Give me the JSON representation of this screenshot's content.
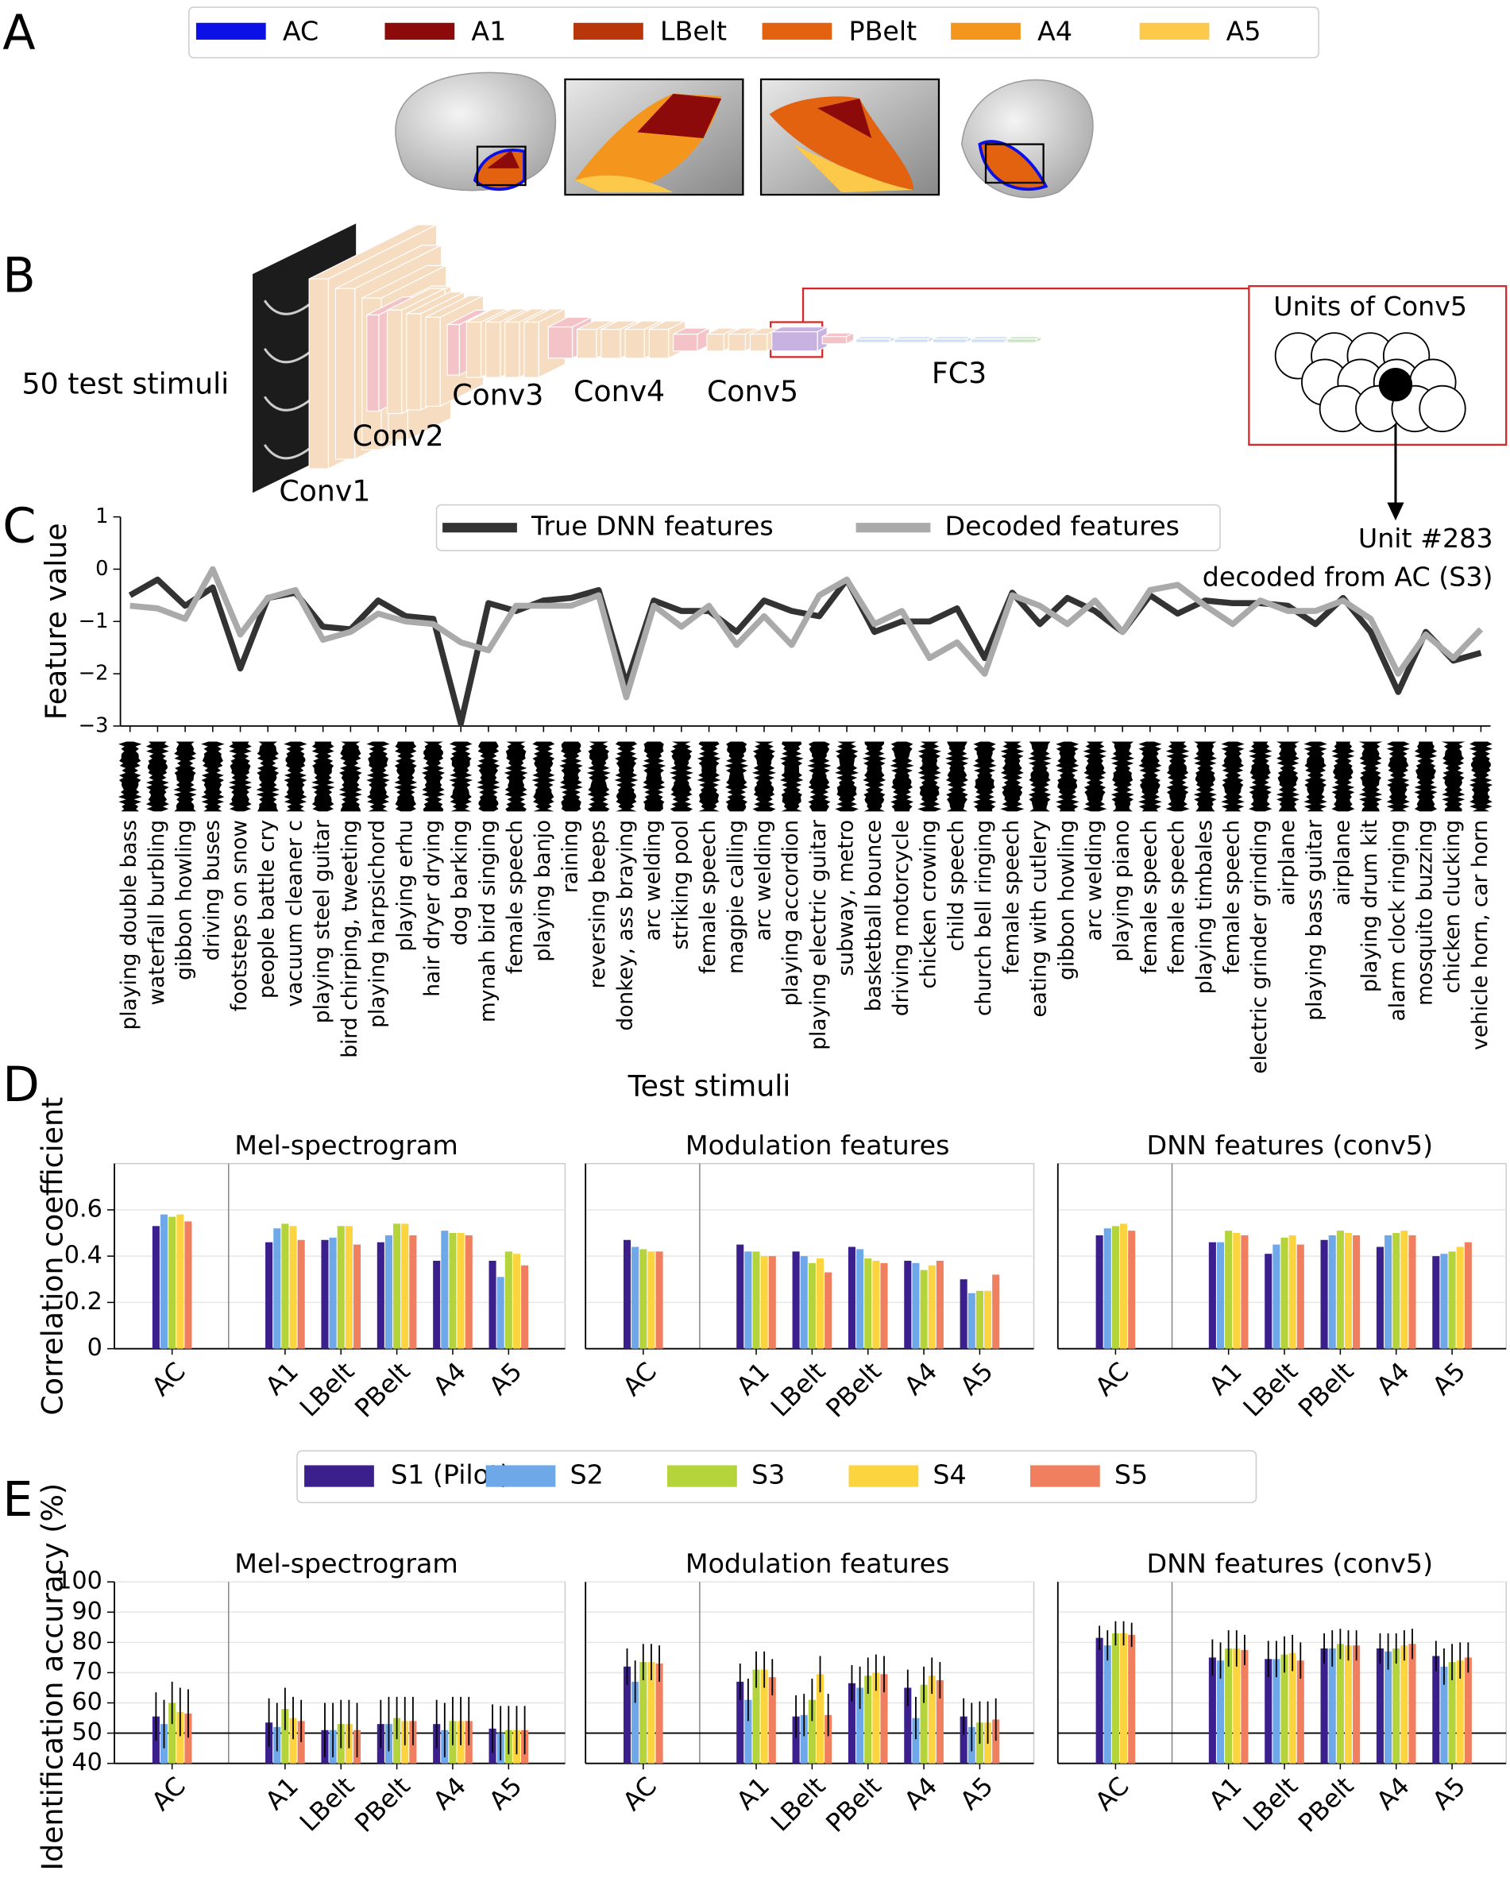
{
  "panels": [
    "A",
    "B",
    "C",
    "D",
    "E"
  ],
  "region_legend": [
    {
      "name": "AC",
      "color": "#0a10e6"
    },
    {
      "name": "A1",
      "color": "#8c0a0a"
    },
    {
      "name": "LBelt",
      "color": "#b8360a"
    },
    {
      "name": "PBelt",
      "color": "#e2620f"
    },
    {
      "name": "A4",
      "color": "#f4961d"
    },
    {
      "name": "A5",
      "color": "#fcc94a"
    }
  ],
  "network": {
    "input": "50 test stimuli",
    "layers": [
      "Conv1",
      "Conv2",
      "Conv3",
      "Conv4",
      "Conv5",
      "FC3"
    ],
    "units_box": "Units of Conv5"
  },
  "chart_data": [
    {
      "type": "line",
      "ylabel": "Feature value",
      "xlabel": "Test stimuli",
      "annotation": [
        "Unit #283",
        "decoded from AC (S3)"
      ],
      "legend": "top",
      "categories": [
        "playing double bass",
        "waterfall burbling",
        "gibbon howling",
        "driving buses",
        "footsteps on snow",
        "people battle cry",
        "vacuum cleaner c",
        "playing steel guitar",
        "bird chirping, tweeting",
        "playing harpsichord",
        "playing erhu",
        "hair dryer drying",
        "dog barking",
        "mynah bird singing",
        "female speech",
        "playing banjo",
        "raining",
        "reversing beeps",
        "donkey, ass braying",
        "arc welding",
        "striking pool",
        "female speech",
        "magpie calling",
        "arc welding",
        "playing accordion",
        "playing electric guitar",
        "subway, metro",
        "basketball bounce",
        "driving motorcycle",
        "chicken crowing",
        "child speech",
        "church bell ringing",
        "female speech",
        "eating with cutlery",
        "gibbon howling",
        "arc welding",
        "playing piano",
        "female speech",
        "female speech",
        "playing timbales",
        "female speech",
        "electric grinder grinding",
        "airplane",
        "playing bass guitar",
        "airplane",
        "playing drum kit",
        "alarm clock ringing",
        "mosquito buzzing",
        "chicken clucking",
        "vehicle horn, car horn"
      ],
      "series": [
        {
          "name": "True DNN features",
          "color": "#333333",
          "values": [
            -0.5,
            -0.2,
            -0.7,
            -0.35,
            -1.9,
            -0.55,
            -0.45,
            -1.1,
            -1.15,
            -0.6,
            -0.9,
            -0.95,
            -2.95,
            -0.65,
            -0.8,
            -0.6,
            -0.55,
            -0.4,
            -2.2,
            -0.6,
            -0.8,
            -0.8,
            -1.2,
            -0.6,
            -0.8,
            -0.9,
            -0.2,
            -1.2,
            -1.0,
            -1.0,
            -0.75,
            -1.7,
            -0.45,
            -1.05,
            -0.55,
            -0.8,
            -1.2,
            -0.5,
            -0.85,
            -0.6,
            -0.65,
            -0.65,
            -0.7,
            -1.05,
            -0.55,
            -1.2,
            -2.35,
            -1.2,
            -1.75,
            -1.6
          ]
        },
        {
          "name": "Decoded features",
          "color": "#aaaaaa",
          "values": [
            -0.7,
            -0.75,
            -0.95,
            0.0,
            -1.25,
            -0.55,
            -0.4,
            -1.35,
            -1.2,
            -0.85,
            -1.0,
            -1.05,
            -1.4,
            -1.55,
            -0.7,
            -0.7,
            -0.7,
            -0.5,
            -2.45,
            -0.7,
            -1.1,
            -0.7,
            -1.45,
            -0.9,
            -1.45,
            -0.5,
            -0.2,
            -1.05,
            -0.8,
            -1.7,
            -1.4,
            -2.0,
            -0.5,
            -0.7,
            -1.05,
            -0.6,
            -1.2,
            -0.4,
            -0.3,
            -0.7,
            -1.05,
            -0.6,
            -0.8,
            -0.8,
            -0.6,
            -0.95,
            -2.0,
            -1.25,
            -1.7,
            -1.15
          ]
        }
      ],
      "ylim": [
        -3,
        1
      ],
      "yticks": [
        {
          "value": -3,
          "label": "−3"
        },
        {
          "value": -2,
          "label": "−2"
        },
        {
          "value": -1,
          "label": "−1"
        },
        0,
        1
      ]
    },
    {
      "type": "bar",
      "title": "Mel-spectrogram",
      "ylabel": "Correlation coefficient",
      "categories": [
        "AC",
        "A1",
        "LBelt",
        "PBelt",
        "A4",
        "A5"
      ],
      "ylim": [
        0,
        0.8
      ],
      "yticks": [
        0,
        0.2,
        0.4,
        0.6
      ],
      "grid": true,
      "series": [
        {
          "name": "S1 (Pilot)",
          "color": "#3b1f8c",
          "values": [
            0.53,
            0.46,
            0.47,
            0.46,
            0.38,
            0.38
          ]
        },
        {
          "name": "S2",
          "color": "#6fa8e8",
          "values": [
            0.58,
            0.52,
            0.48,
            0.49,
            0.51,
            0.31
          ]
        },
        {
          "name": "S3",
          "color": "#b5d33a",
          "values": [
            0.57,
            0.54,
            0.53,
            0.54,
            0.5,
            0.42
          ]
        },
        {
          "name": "S4",
          "color": "#fcd440",
          "values": [
            0.58,
            0.53,
            0.53,
            0.54,
            0.5,
            0.41
          ]
        },
        {
          "name": "S5",
          "color": "#ef7f5e",
          "values": [
            0.55,
            0.47,
            0.45,
            0.49,
            0.49,
            0.36
          ]
        }
      ]
    },
    {
      "type": "bar",
      "title": "Modulation features",
      "categories": [
        "AC",
        "A1",
        "LBelt",
        "PBelt",
        "A4",
        "A5"
      ],
      "ylim": [
        0,
        0.8
      ],
      "yticks": [
        0,
        0.2,
        0.4,
        0.6
      ],
      "grid": true,
      "series": [
        {
          "name": "S1 (Pilot)",
          "color": "#3b1f8c",
          "values": [
            0.47,
            0.45,
            0.42,
            0.44,
            0.38,
            0.3
          ]
        },
        {
          "name": "S2",
          "color": "#6fa8e8",
          "values": [
            0.44,
            0.42,
            0.4,
            0.43,
            0.37,
            0.24
          ]
        },
        {
          "name": "S3",
          "color": "#b5d33a",
          "values": [
            0.43,
            0.42,
            0.37,
            0.39,
            0.34,
            0.25
          ]
        },
        {
          "name": "S4",
          "color": "#fcd440",
          "values": [
            0.42,
            0.4,
            0.39,
            0.38,
            0.36,
            0.25
          ]
        },
        {
          "name": "S5",
          "color": "#ef7f5e",
          "values": [
            0.42,
            0.4,
            0.33,
            0.37,
            0.38,
            0.32
          ]
        }
      ]
    },
    {
      "type": "bar",
      "title": "DNN features (conv5)",
      "categories": [
        "AC",
        "A1",
        "LBelt",
        "PBelt",
        "A4",
        "A5"
      ],
      "ylim": [
        0,
        0.8
      ],
      "yticks": [
        0,
        0.2,
        0.4,
        0.6
      ],
      "grid": true,
      "series": [
        {
          "name": "S1 (Pilot)",
          "color": "#3b1f8c",
          "values": [
            0.49,
            0.46,
            0.41,
            0.47,
            0.44,
            0.4
          ]
        },
        {
          "name": "S2",
          "color": "#6fa8e8",
          "values": [
            0.52,
            0.46,
            0.45,
            0.49,
            0.49,
            0.41
          ]
        },
        {
          "name": "S3",
          "color": "#b5d33a",
          "values": [
            0.53,
            0.51,
            0.48,
            0.51,
            0.5,
            0.42
          ]
        },
        {
          "name": "S4",
          "color": "#fcd440",
          "values": [
            0.54,
            0.5,
            0.49,
            0.5,
            0.51,
            0.44
          ]
        },
        {
          "name": "S5",
          "color": "#ef7f5e",
          "values": [
            0.51,
            0.49,
            0.45,
            0.49,
            0.49,
            0.46
          ]
        }
      ]
    },
    {
      "type": "bar",
      "title": "Mel-spectrogram",
      "ylabel": "Identification accuracy (%)",
      "legend": "top",
      "categories": [
        "AC",
        "A1",
        "LBelt",
        "PBelt",
        "A4",
        "A5"
      ],
      "ylim": [
        40,
        100
      ],
      "yticks": [
        40,
        50,
        60,
        70,
        80,
        90,
        100
      ],
      "grid": true,
      "hline": 50,
      "series": [
        {
          "name": "S1 (Pilot)",
          "color": "#3b1f8c",
          "values": [
            55.5,
            53.5,
            51,
            53,
            53,
            51.5
          ],
          "errors": [
            8,
            8,
            9,
            8,
            8,
            8
          ]
        },
        {
          "name": "S2",
          "color": "#6fa8e8",
          "values": [
            53,
            52,
            51,
            53,
            51,
            50
          ],
          "errors": [
            8,
            8,
            9,
            9,
            9,
            9
          ]
        },
        {
          "name": "S3",
          "color": "#b5d33a",
          "values": [
            60,
            58,
            53,
            55,
            54,
            51
          ],
          "errors": [
            7,
            7,
            8,
            7,
            8,
            8
          ]
        },
        {
          "name": "S4",
          "color": "#fcd440",
          "values": [
            57,
            55,
            53,
            54,
            54,
            51
          ],
          "errors": [
            8,
            7,
            8,
            8,
            8,
            8
          ]
        },
        {
          "name": "S5",
          "color": "#ef7f5e",
          "values": [
            56.5,
            54,
            51,
            54,
            54,
            51
          ],
          "errors": [
            8,
            7,
            9,
            8,
            8,
            8
          ]
        }
      ]
    },
    {
      "type": "bar",
      "title": "Modulation features",
      "categories": [
        "AC",
        "A1",
        "LBelt",
        "PBelt",
        "A4",
        "A5"
      ],
      "ylim": [
        40,
        100
      ],
      "yticks": [
        40,
        50,
        60,
        70,
        80,
        90,
        100
      ],
      "grid": true,
      "hline": 50,
      "series": [
        {
          "name": "S1 (Pilot)",
          "color": "#3b1f8c",
          "values": [
            72,
            67,
            55.5,
            66.5,
            65,
            55.5
          ],
          "errors": [
            6,
            6,
            7,
            6,
            6,
            6
          ]
        },
        {
          "name": "S2",
          "color": "#6fa8e8",
          "values": [
            67,
            61,
            56,
            65,
            55,
            52
          ],
          "errors": [
            7,
            7,
            7,
            7,
            7,
            8
          ]
        },
        {
          "name": "S3",
          "color": "#b5d33a",
          "values": [
            73.5,
            71,
            61,
            69,
            66,
            53.5
          ],
          "errors": [
            6,
            6,
            7,
            6,
            6,
            7
          ]
        },
        {
          "name": "S4",
          "color": "#fcd440",
          "values": [
            73.5,
            71,
            69.5,
            70,
            69,
            53.5
          ],
          "errors": [
            6,
            6,
            6,
            6,
            6,
            7
          ]
        },
        {
          "name": "S5",
          "color": "#ef7f5e",
          "values": [
            73,
            68.5,
            56,
            69.5,
            67.5,
            54.5
          ],
          "errors": [
            6,
            6,
            7,
            6,
            6,
            7
          ]
        }
      ]
    },
    {
      "type": "bar",
      "title": "DNN features (conv5)",
      "categories": [
        "AC",
        "A1",
        "LBelt",
        "PBelt",
        "A4",
        "A5"
      ],
      "ylim": [
        40,
        100
      ],
      "yticks": [
        40,
        50,
        60,
        70,
        80,
        90,
        100
      ],
      "grid": true,
      "hline": 50,
      "series": [
        {
          "name": "S1 (Pilot)",
          "color": "#3b1f8c",
          "values": [
            81.5,
            75,
            74.5,
            78,
            78,
            75.5
          ],
          "errors": [
            4,
            6,
            6,
            5,
            5,
            5
          ]
        },
        {
          "name": "S2",
          "color": "#6fa8e8",
          "values": [
            79,
            74,
            74.5,
            78,
            77,
            72
          ],
          "errors": [
            5,
            6,
            6,
            6,
            6,
            6
          ]
        },
        {
          "name": "S3",
          "color": "#b5d33a",
          "values": [
            83,
            78,
            76,
            79.5,
            78,
            73.5
          ],
          "errors": [
            4,
            6,
            6,
            5,
            5,
            6
          ]
        },
        {
          "name": "S4",
          "color": "#fcd440",
          "values": [
            83,
            78,
            76.5,
            79,
            79,
            74
          ],
          "errors": [
            4,
            6,
            6,
            5,
            5,
            6
          ]
        },
        {
          "name": "S5",
          "color": "#ef7f5e",
          "values": [
            82.5,
            77.5,
            74,
            79,
            79.5,
            75
          ],
          "errors": [
            4,
            5,
            6,
            5,
            5,
            5
          ]
        }
      ]
    }
  ]
}
